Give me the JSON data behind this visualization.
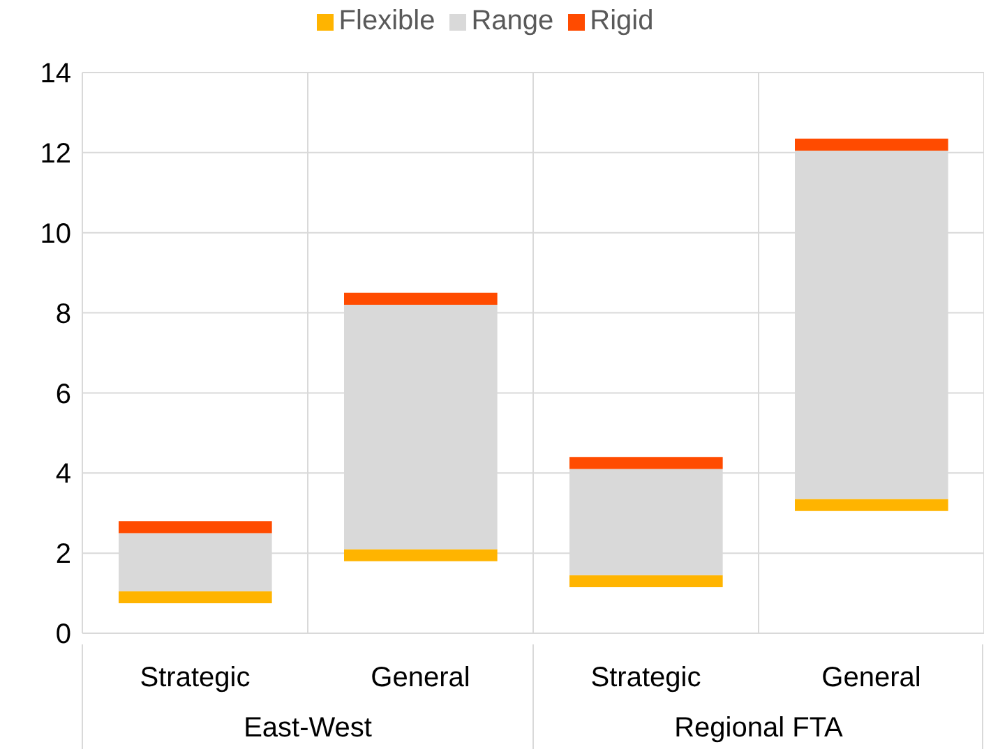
{
  "chart_data": {
    "type": "bar",
    "categories": [
      "Strategic",
      "General",
      "Strategic",
      "General"
    ],
    "series": [
      {
        "name": "Flexible",
        "color": "#ffb400",
        "base": [
          0.75,
          1.8,
          1.15,
          3.05
        ],
        "values": [
          0.3,
          0.3,
          0.3,
          0.3
        ]
      },
      {
        "name": "Range",
        "color": "#d9d9d9",
        "base": [
          1.05,
          2.1,
          1.45,
          3.35
        ],
        "values": [
          1.45,
          6.1,
          2.65,
          8.7
        ]
      },
      {
        "name": "Rigid",
        "color": "#ff4b00",
        "base": [
          2.5,
          8.2,
          4.1,
          12.05
        ],
        "values": [
          0.3,
          0.3,
          0.3,
          0.3
        ]
      }
    ],
    "annotations": [
      "East-West",
      "Regional FTA"
    ],
    "ylim": [
      0,
      14
    ],
    "yticks": [
      0,
      2,
      4,
      6,
      8,
      10,
      12,
      14
    ],
    "grid": true,
    "legend": "top"
  }
}
